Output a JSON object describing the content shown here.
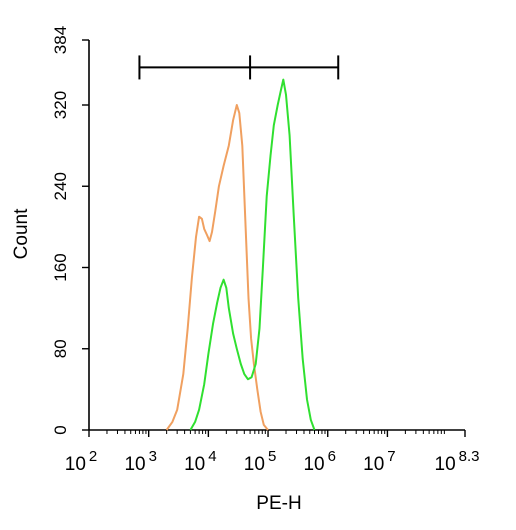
{
  "chart_data": {
    "type": "line",
    "title": "",
    "xlabel": "PE-H",
    "ylabel": "Count",
    "x_scale": "log10",
    "xlim": [
      100,
      199526231
    ],
    "ylim": [
      0,
      384
    ],
    "x_ticks": [
      {
        "base": "10",
        "exp": "2",
        "value": 100
      },
      {
        "base": "10",
        "exp": "3",
        "value": 1000
      },
      {
        "base": "10",
        "exp": "4",
        "value": 10000
      },
      {
        "base": "10",
        "exp": "5",
        "value": 100000
      },
      {
        "base": "10",
        "exp": "6",
        "value": 1000000
      },
      {
        "base": "10",
        "exp": "7",
        "value": 10000000
      },
      {
        "base": "10",
        "exp": "8.3",
        "value": 199526231
      }
    ],
    "y_ticks": [
      "0",
      "80",
      "160",
      "240",
      "320",
      "384"
    ],
    "y_tick_values": [
      0,
      80,
      160,
      240,
      320,
      384
    ],
    "grid": false,
    "legend": false,
    "gate": {
      "start": 700,
      "mid": 50000,
      "end": 1500000,
      "y": 357
    },
    "series": [
      {
        "color": "#f0a060",
        "points": [
          [
            2000,
            0
          ],
          [
            2500,
            8
          ],
          [
            3000,
            20
          ],
          [
            3800,
            55
          ],
          [
            4500,
            100
          ],
          [
            5300,
            150
          ],
          [
            6200,
            190
          ],
          [
            7000,
            210
          ],
          [
            7800,
            208
          ],
          [
            8500,
            198
          ],
          [
            9500,
            192
          ],
          [
            10500,
            186
          ],
          [
            11500,
            195
          ],
          [
            13000,
            215
          ],
          [
            15000,
            240
          ],
          [
            18000,
            260
          ],
          [
            22000,
            280
          ],
          [
            26000,
            305
          ],
          [
            30000,
            320
          ],
          [
            33000,
            312
          ],
          [
            37000,
            280
          ],
          [
            42000,
            200
          ],
          [
            47000,
            130
          ],
          [
            52000,
            90
          ],
          [
            58000,
            65
          ],
          [
            66000,
            40
          ],
          [
            75000,
            18
          ],
          [
            85000,
            5
          ],
          [
            100000,
            0
          ]
        ]
      },
      {
        "color": "#30e030",
        "points": [
          [
            5000,
            0
          ],
          [
            6000,
            8
          ],
          [
            7000,
            20
          ],
          [
            8500,
            45
          ],
          [
            10000,
            75
          ],
          [
            12000,
            105
          ],
          [
            14000,
            125
          ],
          [
            16000,
            140
          ],
          [
            18000,
            148
          ],
          [
            20000,
            140
          ],
          [
            22000,
            120
          ],
          [
            26000,
            95
          ],
          [
            30000,
            80
          ],
          [
            35000,
            65
          ],
          [
            40000,
            55
          ],
          [
            46000,
            50
          ],
          [
            53000,
            52
          ],
          [
            62000,
            65
          ],
          [
            72000,
            100
          ],
          [
            82000,
            160
          ],
          [
            95000,
            230
          ],
          [
            110000,
            270
          ],
          [
            125000,
            300
          ],
          [
            145000,
            320
          ],
          [
            165000,
            335
          ],
          [
            180000,
            345
          ],
          [
            200000,
            330
          ],
          [
            230000,
            290
          ],
          [
            270000,
            210
          ],
          [
            320000,
            130
          ],
          [
            380000,
            70
          ],
          [
            450000,
            30
          ],
          [
            520000,
            10
          ],
          [
            600000,
            0
          ]
        ]
      }
    ]
  }
}
